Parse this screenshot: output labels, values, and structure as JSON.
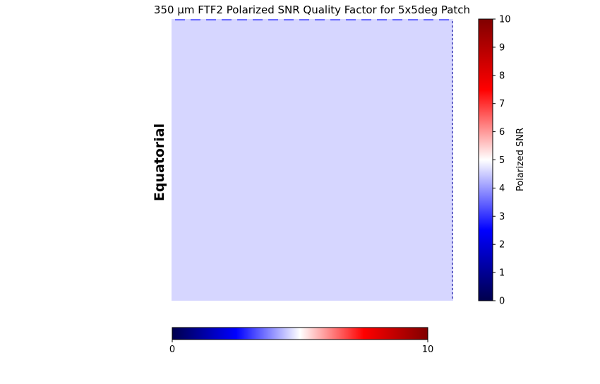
{
  "chart_data": {
    "type": "heatmap",
    "title": "350 μm FTF2 Polarized SNR Quality Factor for 5x5deg Patch",
    "row_label": "Equatorial",
    "colormap": "seismic",
    "color_stops": [
      "#00004c",
      "#0000ff",
      "#ffffff",
      "#ff0000",
      "#800000"
    ],
    "vmin": 0,
    "vmax": 10,
    "field_value": 4.1,
    "field_color": "#d6d6ff",
    "edge_color": "#6b6bff",
    "colorbar_right": {
      "label": "Polarized SNR",
      "ticks": [
        "0",
        "1",
        "2",
        "3",
        "4",
        "5",
        "6",
        "7",
        "8",
        "9",
        "10"
      ]
    },
    "colorbar_bottom": {
      "ticks": [
        "0",
        "10"
      ]
    }
  }
}
